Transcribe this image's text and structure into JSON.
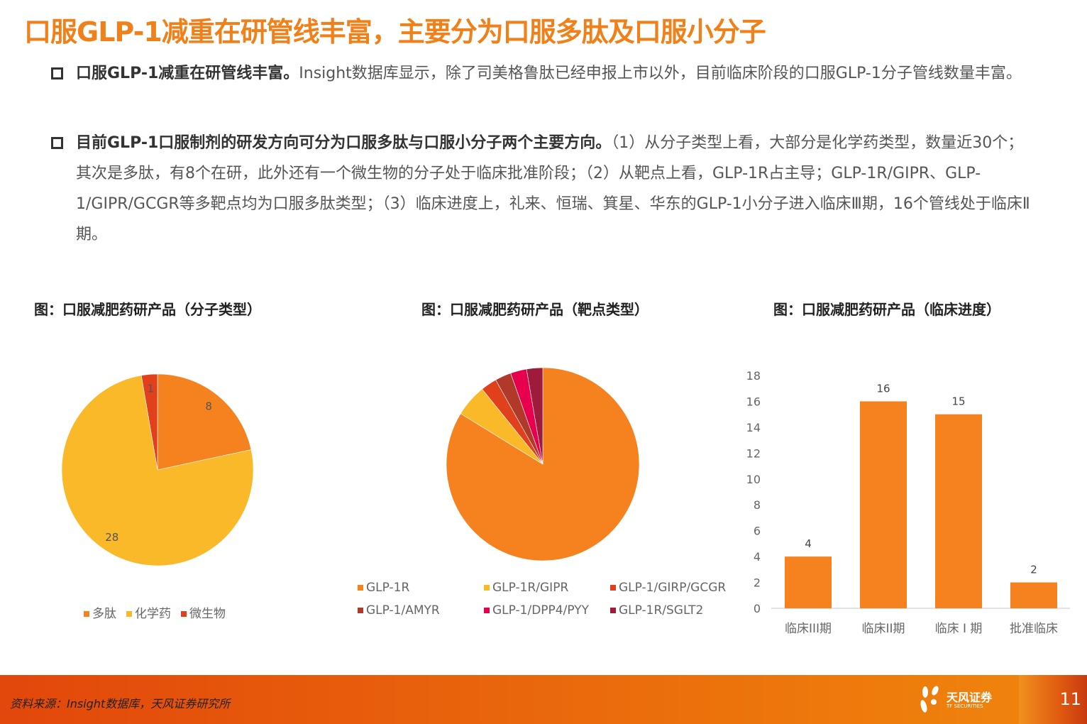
{
  "title": "口服GLP-1减重在研管线丰富，主要分为口服多肽及口服小分子",
  "bullets": [
    {
      "lead": "口服GLP-1减重在研管线丰富。",
      "text": "Insight数据库显示，除了司美格鲁肽已经申报上市以外，目前临床阶段的口服GLP-1分子管线数量丰富。"
    },
    {
      "lead": "目前GLP-1口服制剂的研发方向可分为口服多肽与口服小分子两个主要方向。",
      "text": "（1）从分子类型上看，大部分是化学药类型，数量近30个；其次是多肽，有8个在研，此外还有一个微生物的分子处于临床批准阶段；（2）从靶点上看，GLP-1R占主导；GLP-1R/GIPR、GLP-1/GIPR/GCGR等多靶点均为口服多肽类型；（3）临床进度上，礼来、恒瑞、箕星、华东的GLP-1小分子进入临床Ⅲ期，16个管线处于临床Ⅱ期。"
    }
  ],
  "chart_data": [
    {
      "type": "pie",
      "title": "图：口服减肥药研产品（分子类型）",
      "categories": [
        "多肽",
        "化学药",
        "微生物"
      ],
      "values": [
        8,
        28,
        1
      ],
      "colors": [
        "#F5821F",
        "#F9B928",
        "#E0401C"
      ],
      "data_labels": true,
      "legend": "bottom"
    },
    {
      "type": "pie",
      "title": "图：口服减肥药研产品（靶点类型）",
      "categories": [
        "GLP-1R",
        "GLP-1R/GIPR",
        "GLP-1/GIRP/GCGR",
        "GLP-1/AMYR",
        "GLP-1/DPP4/PYY",
        "GLP-1R/SGLT2"
      ],
      "values": [
        31,
        2,
        1,
        1,
        1,
        1
      ],
      "colors": [
        "#F5821F",
        "#F9B928",
        "#E0401C",
        "#B0392A",
        "#E6004E",
        "#9E1B3C"
      ],
      "data_labels": false,
      "legend": "bottom"
    },
    {
      "type": "bar",
      "title": "图：口服减肥药研产品（临床进度）",
      "categories": [
        "临床III期",
        "临床II期",
        "临床 I 期",
        "批准临床"
      ],
      "values": [
        4,
        16,
        15,
        2
      ],
      "ylim": [
        0,
        18
      ],
      "yticks": [
        0,
        2,
        4,
        6,
        8,
        10,
        12,
        14,
        16,
        18
      ],
      "color": "#F5821F",
      "grid": false
    }
  ],
  "footer": {
    "source": "资料来源：Insight数据库，天风证券研究所",
    "logo_text": "天风证券",
    "logo_sub": "TF SECURITIES",
    "page": "11"
  }
}
